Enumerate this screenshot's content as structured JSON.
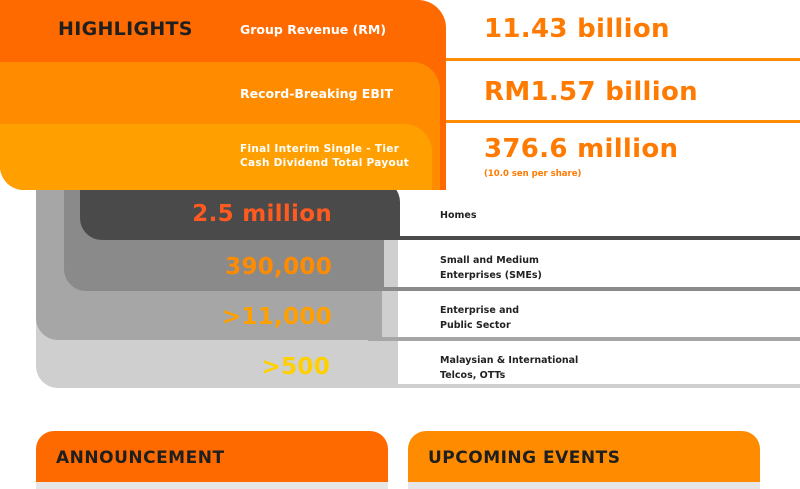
{
  "highlights": {
    "title": "HIGHLIGHTS",
    "rows": [
      {
        "label": "Group Revenue (RM)",
        "value": "11.43 billion"
      },
      {
        "label": "Record-Breaking EBIT",
        "value": "RM1.57 billion"
      },
      {
        "label_line1": "Final Interim Single - Tier",
        "label_line2": "Cash Dividend Total Payout",
        "value": "376.6 million",
        "note": "(10.0 sen per share)"
      }
    ]
  },
  "segments": [
    {
      "stat": "2.5 million",
      "label_line1": "Homes",
      "label_line2": "",
      "stat_color": "#ff5a1f"
    },
    {
      "stat": "390,000",
      "label_line1": "Small and Medium",
      "label_line2": "Enterprises (SMEs)",
      "stat_color": "#ff8c00"
    },
    {
      "stat": ">11,000",
      "label_line1": "Enterprise and",
      "label_line2": "Public Sector",
      "stat_color": "#ffa000"
    },
    {
      "stat": ">500",
      "label_line1": "Malaysian & International",
      "label_line2": "Telcos, OTTs",
      "stat_color": "#ffd000"
    }
  ],
  "tabs": {
    "announcement": "ANNOUNCEMENT",
    "upcoming_events": "UPCOMING EVENTS"
  },
  "colors": {
    "primary_orange": "#ff6a00",
    "mid_orange": "#ff8c00",
    "light_orange": "#ffa000",
    "value_orange": "#ff7a00"
  }
}
